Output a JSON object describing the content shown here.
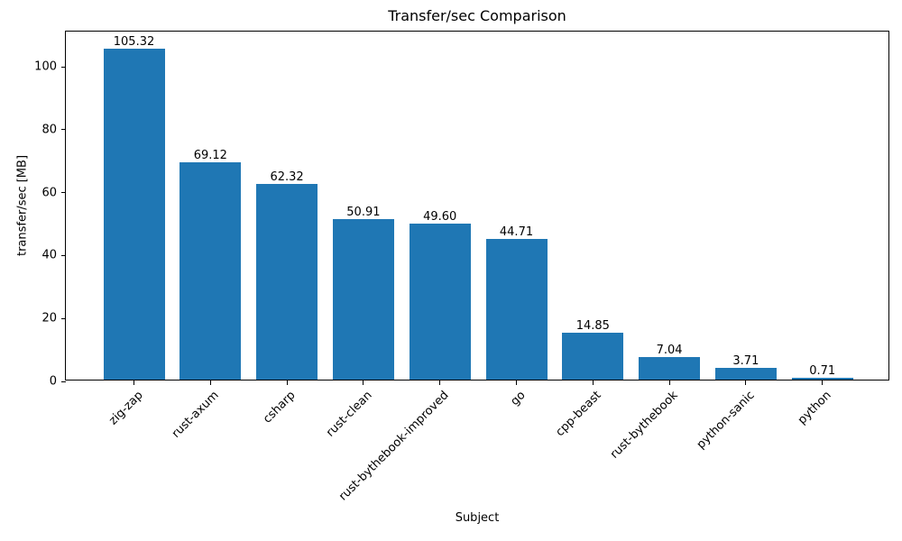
{
  "chart_data": {
    "type": "bar",
    "title": "Transfer/sec Comparison",
    "xlabel": "Subject",
    "ylabel": "transfer/sec [MB]",
    "categories": [
      "zig-zap",
      "rust-axum",
      "csharp",
      "rust-clean",
      "rust-bythebook-improved",
      "go",
      "cpp-beast",
      "rust-bythebook",
      "python-sanic",
      "python"
    ],
    "values": [
      105.32,
      69.12,
      62.32,
      50.91,
      49.6,
      44.71,
      14.85,
      7.04,
      3.71,
      0.71
    ],
    "value_labels": [
      "105.32",
      "69.12",
      "62.32",
      "50.91",
      "49.60",
      "44.71",
      "14.85",
      "7.04",
      "3.71",
      "0.71"
    ],
    "yticks": [
      0,
      20,
      40,
      60,
      80,
      100
    ],
    "ylim": [
      0,
      111.2
    ],
    "bar_color": "#1f77b4",
    "text_color": "#000000",
    "grid": false,
    "legend_position": "none"
  }
}
